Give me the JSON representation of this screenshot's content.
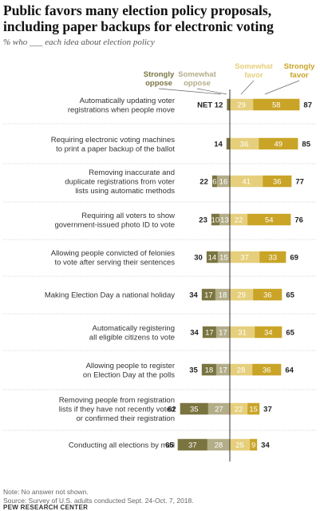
{
  "title": "Public favors many election policy proposals, including paper backups for electronic voting",
  "subtitle": "% who ___ each idea about election policy",
  "net_label": "NET",
  "note": "Note: No answer not shown.",
  "source": "Source: Survey of U.S. adults conducted Sept. 24-Oct. 7, 2018.",
  "brand": "PEW RESEARCH CENTER",
  "chart_data": {
    "type": "bar",
    "orientation": "horizontal-diverging",
    "series": [
      {
        "name": "Strongly oppose",
        "color": "#7a7440",
        "values": [
          null,
          null,
          6,
          10,
          14,
          17,
          17,
          18,
          35,
          37
        ]
      },
      {
        "name": "Somewhat oppose",
        "color": "#b3ad88",
        "values": [
          null,
          null,
          16,
          13,
          15,
          18,
          17,
          17,
          27,
          28
        ]
      },
      {
        "name": "Somewhat favor",
        "color": "#e6cf7c",
        "values": [
          29,
          36,
          41,
          22,
          37,
          29,
          31,
          28,
          22,
          25
        ]
      },
      {
        "name": "Strongly favor",
        "color": "#c9a426",
        "values": [
          58,
          49,
          36,
          54,
          33,
          36,
          34,
          36,
          15,
          9
        ]
      }
    ],
    "categories": [
      {
        "label": "Automatically updating voter registrations when people move",
        "lines": [
          "Automatically updating voter",
          "registrations when people move"
        ],
        "net_oppose": 12,
        "net_favor": 87
      },
      {
        "label": "Requiring electronic voting machines to print a paper backup of the ballot",
        "lines": [
          "Requiring electronic voting machines",
          "to print a paper backup of the ballot"
        ],
        "net_oppose": 14,
        "net_favor": 85
      },
      {
        "label": "Removing inaccurate and duplicate registrations from voter lists using automatic methods",
        "lines": [
          "Removing inaccurate and",
          "duplicate registrations from voter",
          "lists using automatic methods"
        ],
        "net_oppose": 22,
        "net_favor": 77
      },
      {
        "label": "Requiring all voters to show government-issued photo ID to vote",
        "lines": [
          "Requiring all voters to show",
          "government-issued photo ID to vote"
        ],
        "net_oppose": 23,
        "net_favor": 76
      },
      {
        "label": "Allowing people convicted of felonies to vote after serving their sentences",
        "lines": [
          "Allowing people convicted of felonies",
          "to vote after serving their sentences"
        ],
        "net_oppose": 30,
        "net_favor": 69
      },
      {
        "label": "Making Election Day a national holiday",
        "lines": [
          "Making Election Day a national holiday"
        ],
        "net_oppose": 34,
        "net_favor": 65
      },
      {
        "label": "Automatically registering all eligible citizens to vote",
        "lines": [
          "Automatically registering",
          "all eligible citizens to vote"
        ],
        "net_oppose": 34,
        "net_favor": 65
      },
      {
        "label": "Allowing people to register on Election Day at the polls",
        "lines": [
          "Allowing people to register",
          "on Election Day at the polls"
        ],
        "net_oppose": 35,
        "net_favor": 64
      },
      {
        "label": "Removing people from registration lists if they have not recently voted or confirmed their registration",
        "lines": [
          "Removing people from registration",
          "lists if they have not recently voted",
          "or confirmed their registration"
        ],
        "net_oppose": 62,
        "net_favor": 37
      },
      {
        "label": "Conducting all elections by mail",
        "lines": [
          "Conducting all elections by mail"
        ],
        "net_oppose": 65,
        "net_favor": 34
      }
    ],
    "legend": [
      {
        "lines": [
          "Strongly",
          "oppose"
        ],
        "color": "#7a7440"
      },
      {
        "lines": [
          "Somewhat",
          "oppose"
        ],
        "color": "#b3ad88"
      },
      {
        "lines": [
          "Somewhat",
          "favor"
        ],
        "color": "#e6cf7c"
      },
      {
        "lines": [
          "Strongly",
          "favor"
        ],
        "color": "#c9a426"
      }
    ],
    "legend_position": "top",
    "zero_line": true,
    "grid": false
  }
}
